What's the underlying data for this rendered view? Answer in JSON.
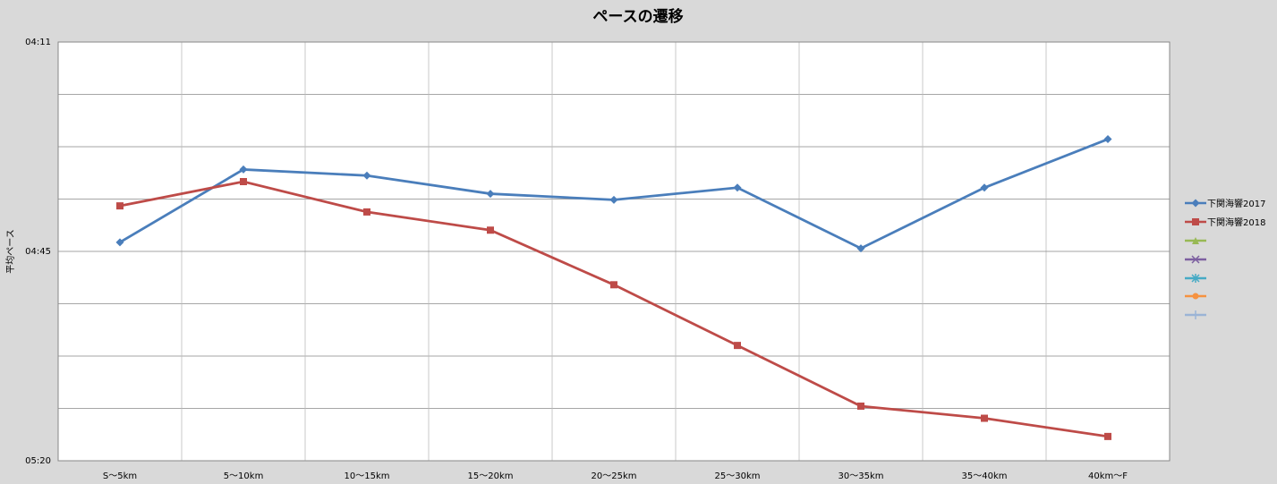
{
  "chart_data": {
    "type": "line",
    "title": "ペースの遷移",
    "y_label": "平均ペース",
    "categories": [
      "S～5km",
      "5～10km",
      "10～15km",
      "15～20km",
      "20～25km",
      "25～30km",
      "30～35km",
      "35～40km",
      "40km～F"
    ],
    "series": [
      {
        "name": "下関海響2017",
        "color": "#4a7ebb",
        "marker": "diamond",
        "values": [
          284,
          272,
          273,
          276,
          277,
          275,
          285,
          275,
          267
        ]
      },
      {
        "name": "下関海響2018",
        "color": "#be4b48",
        "marker": "square",
        "values": [
          278,
          274,
          279,
          282,
          291,
          301,
          311,
          313,
          316
        ]
      }
    ],
    "ylim": [
      251,
      320
    ],
    "y_inverted": true,
    "yticks": [
      {
        "value": 251,
        "label": "04:11"
      },
      {
        "value": 285.5,
        "label": "04:45"
      },
      {
        "value": 320,
        "label": "05:20"
      }
    ],
    "ygrid": [
      259.625,
      268.25,
      276.875,
      294.125,
      302.75,
      311.375
    ],
    "grid": true
  }
}
